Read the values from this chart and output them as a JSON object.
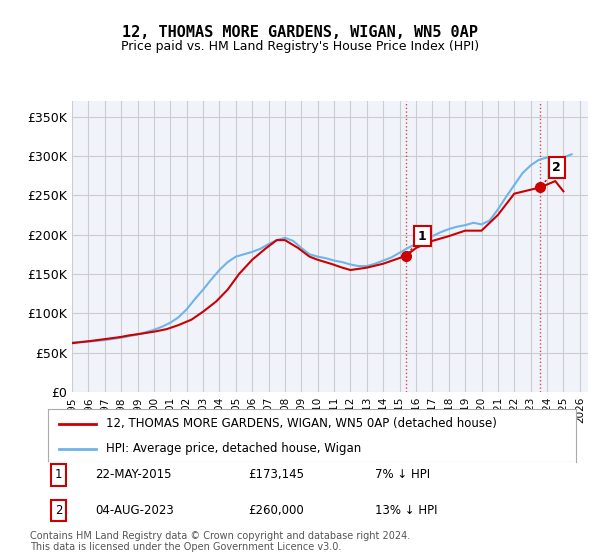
{
  "title": "12, THOMAS MORE GARDENS, WIGAN, WN5 0AP",
  "subtitle": "Price paid vs. HM Land Registry's House Price Index (HPI)",
  "ylabel_ticks": [
    "£0",
    "£50K",
    "£100K",
    "£150K",
    "£200K",
    "£250K",
    "£300K",
    "£350K"
  ],
  "ytick_values": [
    0,
    50000,
    100000,
    150000,
    200000,
    250000,
    300000,
    350000
  ],
  "ylim": [
    0,
    370000
  ],
  "xlim_start": 1995.0,
  "xlim_end": 2026.5,
  "hpi_color": "#6eb4e8",
  "price_color": "#cc0000",
  "marker_color": "#cc0000",
  "grid_color": "#cccccc",
  "background_color": "#f0f4fa",
  "legend_box_color": "#ffffff",
  "sale1_label": "1",
  "sale1_date": "22-MAY-2015",
  "sale1_price": "£173,145",
  "sale1_hpi": "7% ↓ HPI",
  "sale1_x": 2015.39,
  "sale1_y": 173145,
  "sale2_label": "2",
  "sale2_date": "04-AUG-2023",
  "sale2_price": "£260,000",
  "sale2_hpi": "13% ↓ HPI",
  "sale2_x": 2023.59,
  "sale2_y": 260000,
  "legend_line1": "12, THOMAS MORE GARDENS, WIGAN, WN5 0AP (detached house)",
  "legend_line2": "HPI: Average price, detached house, Wigan",
  "footer1": "Contains HM Land Registry data © Crown copyright and database right 2024.",
  "footer2": "This data is licensed under the Open Government Licence v3.0.",
  "hpi_x": [
    1995.0,
    1995.5,
    1996.0,
    1996.5,
    1997.0,
    1997.5,
    1998.0,
    1998.5,
    1999.0,
    1999.5,
    2000.0,
    2000.5,
    2001.0,
    2001.5,
    2002.0,
    2002.5,
    2003.0,
    2003.5,
    2004.0,
    2004.5,
    2005.0,
    2005.5,
    2006.0,
    2006.5,
    2007.0,
    2007.5,
    2008.0,
    2008.5,
    2009.0,
    2009.5,
    2010.0,
    2010.5,
    2011.0,
    2011.5,
    2012.0,
    2012.5,
    2013.0,
    2013.5,
    2014.0,
    2014.5,
    2015.0,
    2015.5,
    2016.0,
    2016.5,
    2017.0,
    2017.5,
    2018.0,
    2018.5,
    2019.0,
    2019.5,
    2020.0,
    2020.5,
    2021.0,
    2021.5,
    2022.0,
    2022.5,
    2023.0,
    2023.5,
    2024.0,
    2024.5,
    2025.0,
    2025.5
  ],
  "hpi_y": [
    63000,
    63500,
    64000,
    65000,
    66000,
    67500,
    69000,
    71000,
    73000,
    76000,
    79000,
    83000,
    88000,
    95000,
    105000,
    118000,
    130000,
    143000,
    155000,
    165000,
    172000,
    175000,
    178000,
    182000,
    188000,
    193000,
    196000,
    192000,
    183000,
    175000,
    172000,
    170000,
    167000,
    165000,
    162000,
    160000,
    160000,
    163000,
    167000,
    171000,
    177000,
    183000,
    188000,
    193000,
    198000,
    203000,
    207000,
    210000,
    212000,
    215000,
    213000,
    218000,
    232000,
    248000,
    263000,
    278000,
    288000,
    295000,
    298000,
    296000,
    298000,
    302000
  ],
  "price_x": [
    1995.0,
    1996.2,
    1997.3,
    1998.0,
    1998.5,
    1999.2,
    2000.1,
    2000.8,
    2001.5,
    2002.3,
    2003.0,
    2003.8,
    2004.5,
    2005.2,
    2006.0,
    2006.8,
    2007.5,
    2008.0,
    2008.8,
    2009.5,
    2010.0,
    2010.8,
    2011.5,
    2012.0,
    2013.0,
    2014.0,
    2015.39,
    2016.0,
    2017.0,
    2018.0,
    2019.0,
    2020.0,
    2021.0,
    2022.0,
    2023.59,
    2024.5,
    2025.0
  ],
  "price_y": [
    62000,
    65000,
    68000,
    70000,
    72000,
    74000,
    77000,
    80000,
    85000,
    92000,
    102000,
    115000,
    130000,
    150000,
    168000,
    182000,
    193000,
    193000,
    183000,
    172000,
    168000,
    163000,
    158000,
    155000,
    158000,
    163000,
    173145,
    183000,
    192000,
    198000,
    205000,
    205000,
    225000,
    252000,
    260000,
    268000,
    255000
  ]
}
